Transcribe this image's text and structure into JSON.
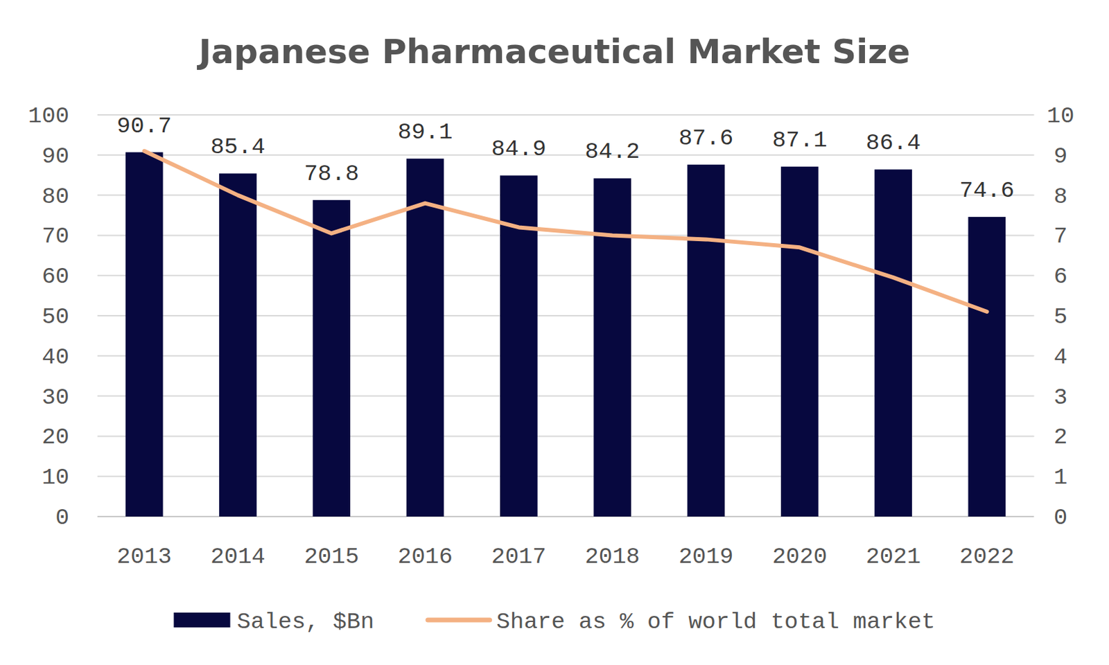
{
  "chart_data": {
    "type": "bar",
    "title": "Japanese Pharmaceutical Market Size",
    "categories": [
      "2013",
      "2014",
      "2015",
      "2016",
      "2017",
      "2018",
      "2019",
      "2020",
      "2021",
      "2022"
    ],
    "series": [
      {
        "name": "Sales, $Bn",
        "type": "bar",
        "color": "#07083f",
        "values": [
          90.7,
          85.4,
          78.8,
          89.1,
          84.9,
          84.2,
          87.6,
          87.1,
          86.4,
          74.6
        ]
      },
      {
        "name": "Share as % of world total market",
        "type": "line",
        "color": "#f4b183",
        "axis": "y2",
        "values": [
          9.1,
          8.0,
          7.05,
          7.8,
          7.2,
          7.0,
          6.9,
          6.7,
          5.95,
          5.1
        ]
      }
    ],
    "ylim": [
      0,
      100
    ],
    "yticks": [
      0,
      10,
      20,
      30,
      40,
      50,
      60,
      70,
      80,
      90,
      100
    ],
    "y2lim": [
      0,
      10
    ],
    "y2ticks": [
      0,
      1,
      2,
      3,
      4,
      5,
      6,
      7,
      8,
      9,
      10
    ],
    "grid": true,
    "data_labels": true,
    "legend": "bottom"
  }
}
